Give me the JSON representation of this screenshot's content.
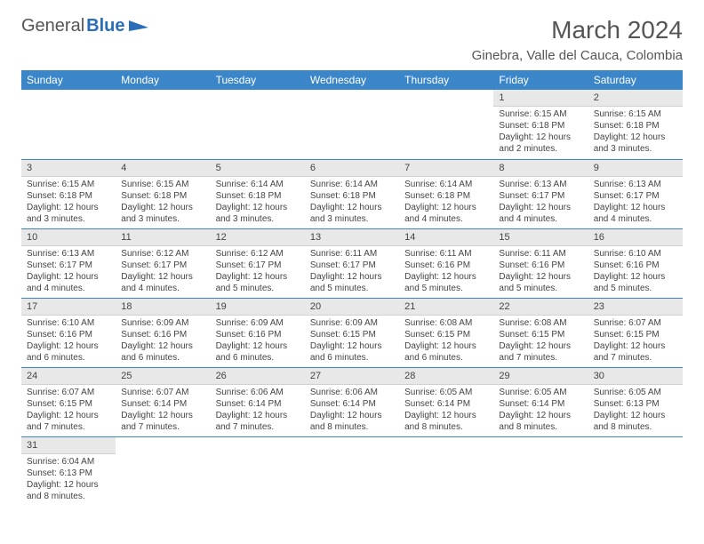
{
  "logo": {
    "text1": "General",
    "text2": "Blue"
  },
  "title": "March 2024",
  "location": "Ginebra, Valle del Cauca, Colombia",
  "colors": {
    "header_bg": "#3b86c8",
    "header_text": "#ffffff",
    "daynum_bg": "#e8e8e8",
    "row_border": "#3b86c8",
    "text": "#444444",
    "logo_blue": "#2a6db8"
  },
  "weekdays": [
    "Sunday",
    "Monday",
    "Tuesday",
    "Wednesday",
    "Thursday",
    "Friday",
    "Saturday"
  ],
  "first_weekday_index": 5,
  "days": [
    {
      "n": 1,
      "sunrise": "6:15 AM",
      "sunset": "6:18 PM",
      "daylight": "12 hours and 2 minutes."
    },
    {
      "n": 2,
      "sunrise": "6:15 AM",
      "sunset": "6:18 PM",
      "daylight": "12 hours and 3 minutes."
    },
    {
      "n": 3,
      "sunrise": "6:15 AM",
      "sunset": "6:18 PM",
      "daylight": "12 hours and 3 minutes."
    },
    {
      "n": 4,
      "sunrise": "6:15 AM",
      "sunset": "6:18 PM",
      "daylight": "12 hours and 3 minutes."
    },
    {
      "n": 5,
      "sunrise": "6:14 AM",
      "sunset": "6:18 PM",
      "daylight": "12 hours and 3 minutes."
    },
    {
      "n": 6,
      "sunrise": "6:14 AM",
      "sunset": "6:18 PM",
      "daylight": "12 hours and 3 minutes."
    },
    {
      "n": 7,
      "sunrise": "6:14 AM",
      "sunset": "6:18 PM",
      "daylight": "12 hours and 4 minutes."
    },
    {
      "n": 8,
      "sunrise": "6:13 AM",
      "sunset": "6:17 PM",
      "daylight": "12 hours and 4 minutes."
    },
    {
      "n": 9,
      "sunrise": "6:13 AM",
      "sunset": "6:17 PM",
      "daylight": "12 hours and 4 minutes."
    },
    {
      "n": 10,
      "sunrise": "6:13 AM",
      "sunset": "6:17 PM",
      "daylight": "12 hours and 4 minutes."
    },
    {
      "n": 11,
      "sunrise": "6:12 AM",
      "sunset": "6:17 PM",
      "daylight": "12 hours and 4 minutes."
    },
    {
      "n": 12,
      "sunrise": "6:12 AM",
      "sunset": "6:17 PM",
      "daylight": "12 hours and 5 minutes."
    },
    {
      "n": 13,
      "sunrise": "6:11 AM",
      "sunset": "6:17 PM",
      "daylight": "12 hours and 5 minutes."
    },
    {
      "n": 14,
      "sunrise": "6:11 AM",
      "sunset": "6:16 PM",
      "daylight": "12 hours and 5 minutes."
    },
    {
      "n": 15,
      "sunrise": "6:11 AM",
      "sunset": "6:16 PM",
      "daylight": "12 hours and 5 minutes."
    },
    {
      "n": 16,
      "sunrise": "6:10 AM",
      "sunset": "6:16 PM",
      "daylight": "12 hours and 5 minutes."
    },
    {
      "n": 17,
      "sunrise": "6:10 AM",
      "sunset": "6:16 PM",
      "daylight": "12 hours and 6 minutes."
    },
    {
      "n": 18,
      "sunrise": "6:09 AM",
      "sunset": "6:16 PM",
      "daylight": "12 hours and 6 minutes."
    },
    {
      "n": 19,
      "sunrise": "6:09 AM",
      "sunset": "6:16 PM",
      "daylight": "12 hours and 6 minutes."
    },
    {
      "n": 20,
      "sunrise": "6:09 AM",
      "sunset": "6:15 PM",
      "daylight": "12 hours and 6 minutes."
    },
    {
      "n": 21,
      "sunrise": "6:08 AM",
      "sunset": "6:15 PM",
      "daylight": "12 hours and 6 minutes."
    },
    {
      "n": 22,
      "sunrise": "6:08 AM",
      "sunset": "6:15 PM",
      "daylight": "12 hours and 7 minutes."
    },
    {
      "n": 23,
      "sunrise": "6:07 AM",
      "sunset": "6:15 PM",
      "daylight": "12 hours and 7 minutes."
    },
    {
      "n": 24,
      "sunrise": "6:07 AM",
      "sunset": "6:15 PM",
      "daylight": "12 hours and 7 minutes."
    },
    {
      "n": 25,
      "sunrise": "6:07 AM",
      "sunset": "6:14 PM",
      "daylight": "12 hours and 7 minutes."
    },
    {
      "n": 26,
      "sunrise": "6:06 AM",
      "sunset": "6:14 PM",
      "daylight": "12 hours and 7 minutes."
    },
    {
      "n": 27,
      "sunrise": "6:06 AM",
      "sunset": "6:14 PM",
      "daylight": "12 hours and 8 minutes."
    },
    {
      "n": 28,
      "sunrise": "6:05 AM",
      "sunset": "6:14 PM",
      "daylight": "12 hours and 8 minutes."
    },
    {
      "n": 29,
      "sunrise": "6:05 AM",
      "sunset": "6:14 PM",
      "daylight": "12 hours and 8 minutes."
    },
    {
      "n": 30,
      "sunrise": "6:05 AM",
      "sunset": "6:13 PM",
      "daylight": "12 hours and 8 minutes."
    },
    {
      "n": 31,
      "sunrise": "6:04 AM",
      "sunset": "6:13 PM",
      "daylight": "12 hours and 8 minutes."
    }
  ],
  "labels": {
    "sunrise": "Sunrise:",
    "sunset": "Sunset:",
    "daylight": "Daylight:"
  }
}
